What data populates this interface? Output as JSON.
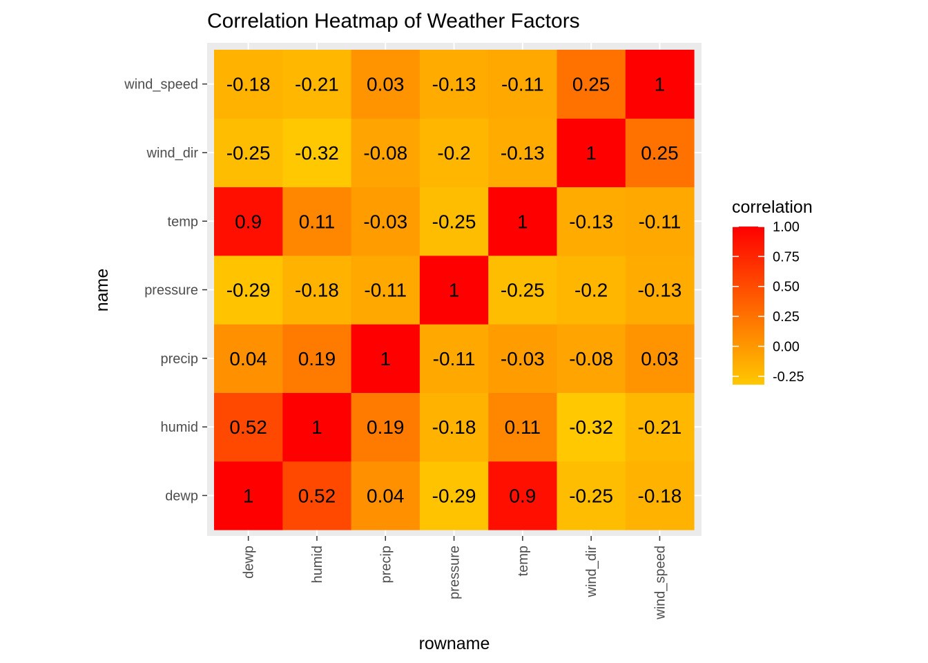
{
  "chart_data": {
    "type": "heatmap",
    "title": "Correlation Heatmap of Weather Factors",
    "xlabel": "rowname",
    "ylabel": "name",
    "x_categories": [
      "dewp",
      "humid",
      "precip",
      "pressure",
      "temp",
      "wind_dir",
      "wind_speed"
    ],
    "y_categories": [
      "dewp",
      "humid",
      "precip",
      "pressure",
      "temp",
      "wind_dir",
      "wind_speed"
    ],
    "values": [
      [
        1,
        0.52,
        0.04,
        -0.29,
        0.9,
        -0.25,
        -0.18
      ],
      [
        0.52,
        1,
        0.19,
        -0.18,
        0.11,
        -0.32,
        -0.21
      ],
      [
        0.04,
        0.19,
        1,
        -0.11,
        -0.03,
        -0.08,
        0.03
      ],
      [
        -0.29,
        -0.18,
        -0.11,
        1,
        -0.25,
        -0.2,
        -0.13
      ],
      [
        0.9,
        0.11,
        -0.03,
        -0.25,
        1,
        -0.13,
        -0.11
      ],
      [
        -0.25,
        -0.32,
        -0.08,
        -0.2,
        -0.13,
        1,
        0.25
      ],
      [
        -0.18,
        -0.21,
        0.03,
        -0.13,
        -0.11,
        0.25,
        1
      ]
    ],
    "legend": {
      "title": "correlation",
      "placement": "right",
      "breaks": [
        1.0,
        0.75,
        0.5,
        0.25,
        0.0,
        -0.25
      ],
      "break_labels": [
        "1.00",
        "0.75",
        "0.50",
        "0.25",
        "0.00",
        "-0.25"
      ]
    },
    "color_scale": {
      "low": "#FFC800",
      "high": "#FF0000",
      "range": [
        -0.32,
        1
      ]
    },
    "panel_background": "#EBEBEB",
    "grid": true
  }
}
